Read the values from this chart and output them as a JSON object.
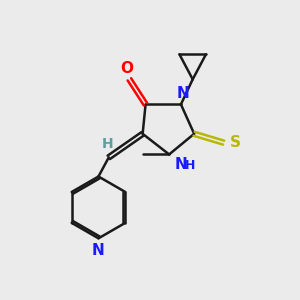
{
  "background_color": "#ebebeb",
  "bond_color": "#1a1a1a",
  "N_color": "#1a1aff",
  "O_color": "#ff0000",
  "S_color": "#b8b800",
  "H_color": "#5f9ea0",
  "bond_width": 1.8,
  "figsize": [
    3.0,
    3.0
  ],
  "dpi": 100,
  "xlim": [
    0,
    10
  ],
  "ylim": [
    0,
    10
  ]
}
